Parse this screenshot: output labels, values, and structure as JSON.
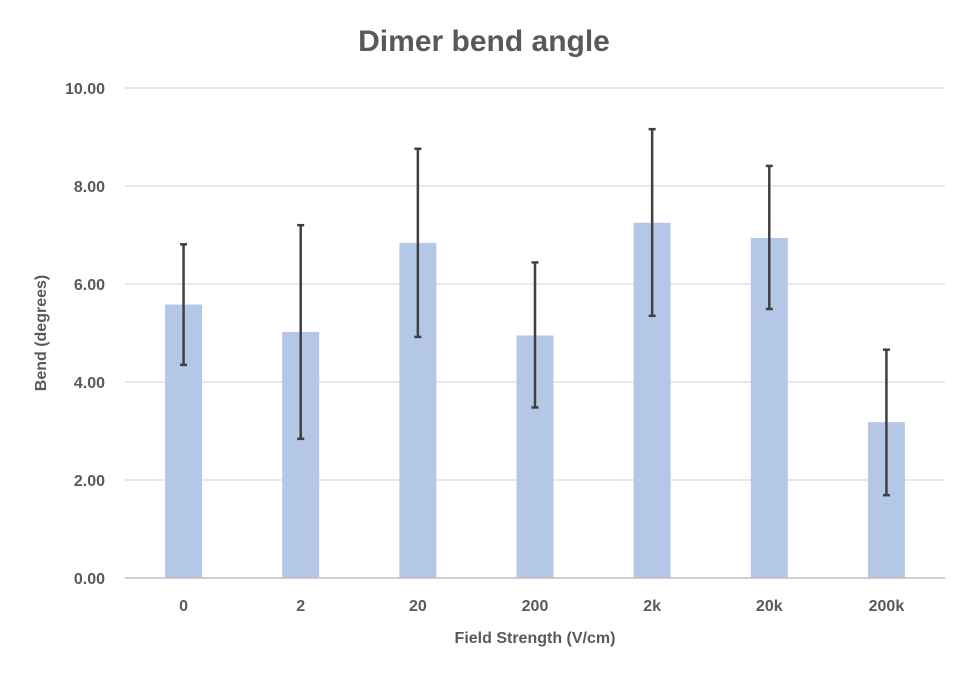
{
  "chart_data": {
    "type": "bar",
    "title": "Dimer bend angle",
    "xlabel": "Field Strength (V/cm)",
    "ylabel": "Bend (degrees)",
    "categories": [
      "0",
      "2",
      "20",
      "200",
      "2k",
      "20k",
      "200k"
    ],
    "values": [
      5.58,
      5.02,
      6.84,
      4.95,
      7.25,
      6.94,
      3.18
    ],
    "error_low": [
      4.35,
      2.84,
      4.92,
      3.48,
      5.35,
      5.49,
      1.69
    ],
    "error_high": [
      6.81,
      7.2,
      8.76,
      6.44,
      9.16,
      8.41,
      4.66
    ],
    "ylim": [
      0,
      10
    ],
    "yticks": [
      "0.00",
      "2.00",
      "4.00",
      "6.00",
      "8.00",
      "10.00"
    ],
    "grid": true,
    "legend": "none",
    "colors": {
      "bar": "#b4c7e7",
      "error_bar": "#404040",
      "grid": "#d9d9d9",
      "axis": "#bfbfbf",
      "text": "#595959"
    }
  }
}
